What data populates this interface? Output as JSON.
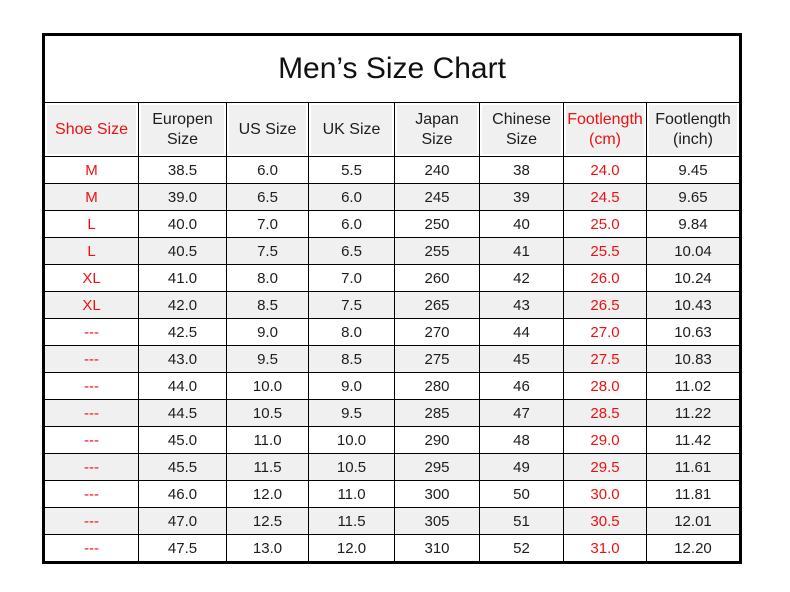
{
  "colors": {
    "accent_red": "#ee1111",
    "header_fill": "#f0f0f0",
    "stripe_fill": "#f0f0f0",
    "grid_black": "#000000",
    "text_black": "#1d1d1d",
    "page_bg": "#ffffff"
  },
  "chart_data": {
    "type": "table",
    "title": "Men’s Size Chart",
    "columns": [
      "Shoe Size",
      "Europen Size",
      "US Size",
      "UK Size",
      "Japan Size",
      "Chinese Size",
      "Footlength (cm)",
      "Footlength (inch)"
    ],
    "rows": [
      [
        "M",
        "38.5",
        "6.0",
        "5.5",
        "240",
        "38",
        "24.0",
        "9.45"
      ],
      [
        "M",
        "39.0",
        "6.5",
        "6.0",
        "245",
        "39",
        "24.5",
        "9.65"
      ],
      [
        "L",
        "40.0",
        "7.0",
        "6.0",
        "250",
        "40",
        "25.0",
        "9.84"
      ],
      [
        "L",
        "40.5",
        "7.5",
        "6.5",
        "255",
        "41",
        "25.5",
        "10.04"
      ],
      [
        "XL",
        "41.0",
        "8.0",
        "7.0",
        "260",
        "42",
        "26.0",
        "10.24"
      ],
      [
        "XL",
        "42.0",
        "8.5",
        "7.5",
        "265",
        "43",
        "26.5",
        "10.43"
      ],
      [
        "---",
        "42.5",
        "9.0",
        "8.0",
        "270",
        "44",
        "27.0",
        "10.63"
      ],
      [
        "---",
        "43.0",
        "9.5",
        "8.5",
        "275",
        "45",
        "27.5",
        "10.83"
      ],
      [
        "---",
        "44.0",
        "10.0",
        "9.0",
        "280",
        "46",
        "28.0",
        "11.02"
      ],
      [
        "---",
        "44.5",
        "10.5",
        "9.5",
        "285",
        "47",
        "28.5",
        "11.22"
      ],
      [
        "---",
        "45.0",
        "11.0",
        "10.0",
        "290",
        "48",
        "29.0",
        "11.42"
      ],
      [
        "---",
        "45.5",
        "11.5",
        "10.5",
        "295",
        "49",
        "29.5",
        "11.61"
      ],
      [
        "---",
        "46.0",
        "12.0",
        "11.0",
        "300",
        "50",
        "30.0",
        "11.81"
      ],
      [
        "---",
        "47.0",
        "12.5",
        "11.5",
        "305",
        "51",
        "30.5",
        "12.01"
      ],
      [
        "---",
        "47.5",
        "13.0",
        "12.0",
        "310",
        "52",
        "31.0",
        "12.20"
      ]
    ],
    "red_text_columns": [
      0,
      6
    ],
    "legend_position": "none",
    "grid": true
  },
  "layout_hints": {
    "two_line_header_columns": [
      1,
      4,
      5,
      6,
      7
    ],
    "striped_rows": "even rows (2nd, 4th, ...) are light gray"
  }
}
